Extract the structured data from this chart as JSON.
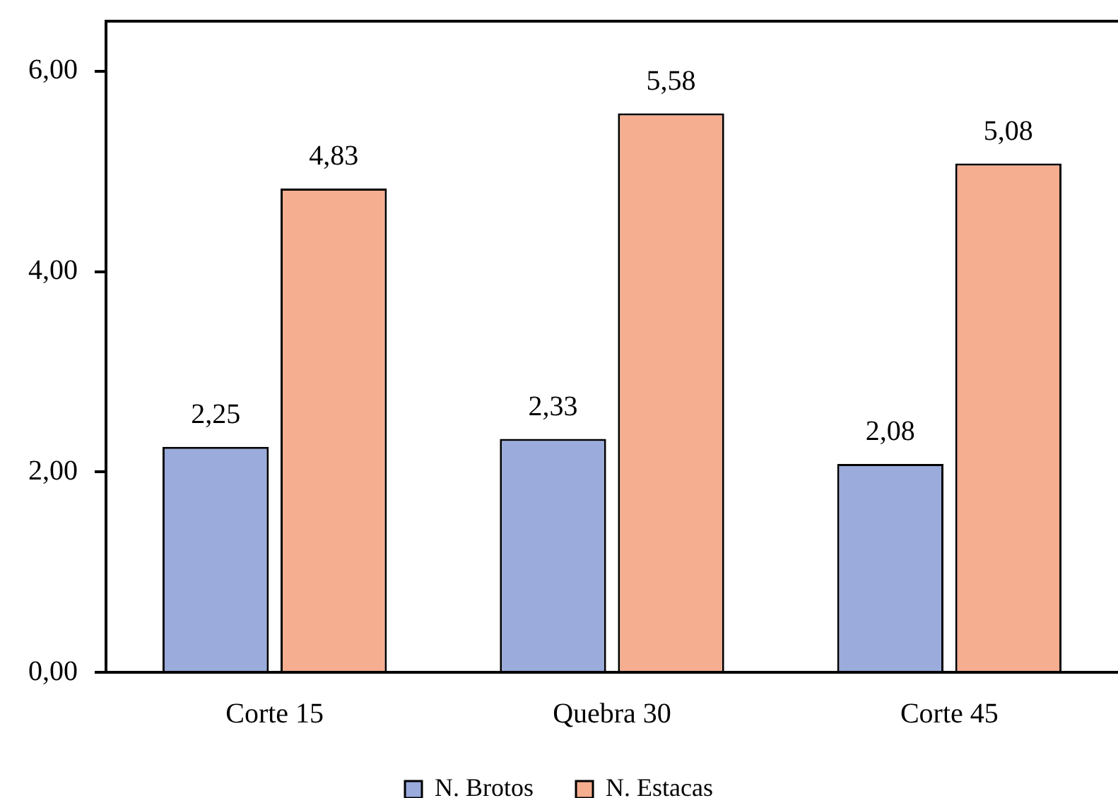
{
  "chart_data": {
    "type": "bar",
    "categories": [
      "Corte 15",
      "Quebra 30",
      "Corte 45"
    ],
    "series": [
      {
        "name": "N. Brotos",
        "color": "#9aabdc",
        "values": [
          2.25,
          2.33,
          2.08
        ],
        "value_labels": [
          "2,25",
          "2,33",
          "2,08"
        ]
      },
      {
        "name": "N. Estacas",
        "color": "#f5ae8f",
        "values": [
          4.83,
          5.58,
          5.08
        ],
        "value_labels": [
          "4,83",
          "5,58",
          "5,08"
        ]
      }
    ],
    "ylim": [
      0,
      6.5
    ],
    "yticks": [
      {
        "value": 0,
        "label": "0,00"
      },
      {
        "value": 2,
        "label": "2,00"
      },
      {
        "value": 4,
        "label": "4,00"
      },
      {
        "value": 6,
        "label": "6,00"
      }
    ],
    "grid": false,
    "legend": "bottom"
  }
}
